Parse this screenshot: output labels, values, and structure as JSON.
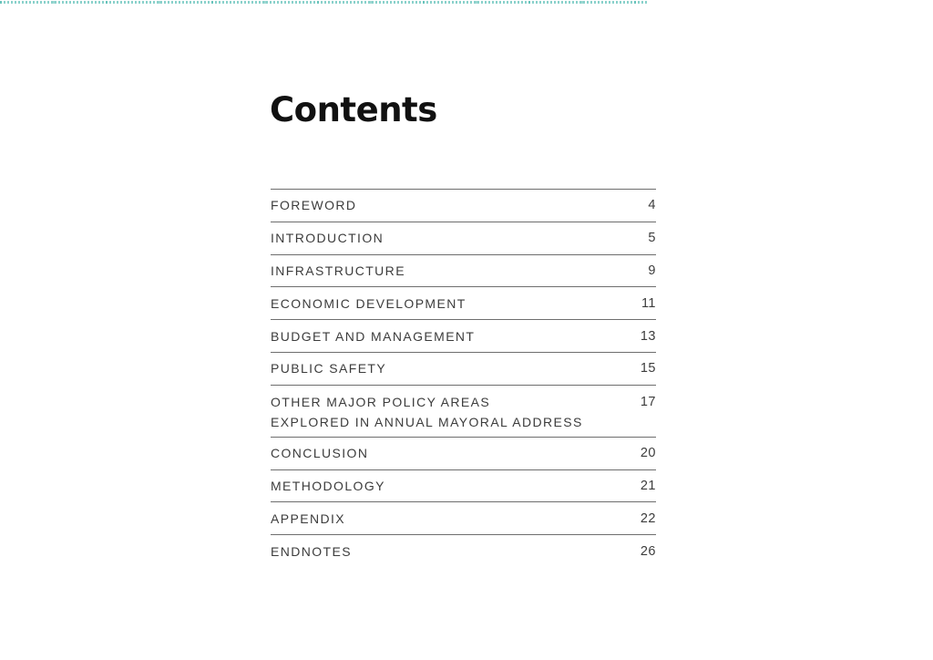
{
  "page": {
    "title": "Contents",
    "accent_color": "#8ad1cb"
  },
  "toc": {
    "entries": [
      {
        "lines": [
          "FOREWORD"
        ],
        "page": "4"
      },
      {
        "lines": [
          "INTRODUCTION"
        ],
        "page": "5"
      },
      {
        "lines": [
          "INFRASTRUCTURE"
        ],
        "page": "9"
      },
      {
        "lines": [
          "ECONOMIC DEVELOPMENT"
        ],
        "page": "11"
      },
      {
        "lines": [
          "BUDGET AND MANAGEMENT"
        ],
        "page": "13"
      },
      {
        "lines": [
          "PUBLIC SAFETY"
        ],
        "page": "15"
      },
      {
        "lines": [
          "OTHER MAJOR POLICY AREAS",
          "EXPLORED IN ANNUAL MAYORAL ADDRESS"
        ],
        "page": "17"
      },
      {
        "lines": [
          "CONCLUSION"
        ],
        "page": "20"
      },
      {
        "lines": [
          "METHODOLOGY"
        ],
        "page": "21"
      },
      {
        "lines": [
          "APPENDIX"
        ],
        "page": "22"
      },
      {
        "lines": [
          "ENDNOTES"
        ],
        "page": "26"
      }
    ]
  }
}
